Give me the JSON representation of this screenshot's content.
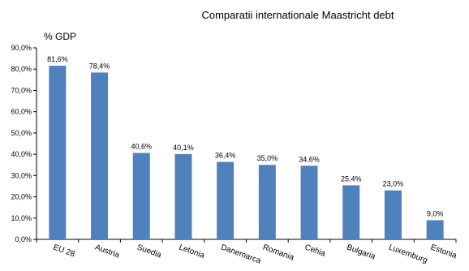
{
  "chart_data": {
    "type": "bar",
    "title": "Comparatii internationale Maastricht debt",
    "ylabel": "% GDP",
    "xlabel": "",
    "categories": [
      "EU 28",
      "Austria",
      "Suedia",
      "Letonia",
      "Danemarca",
      "Romania",
      "Cehia",
      "Bulgaria",
      "Luxemburg",
      "Estonia"
    ],
    "values": [
      81.6,
      78.4,
      40.6,
      40.1,
      36.4,
      35.0,
      34.6,
      25.4,
      23.0,
      9.0
    ],
    "data_labels": [
      "81,6%",
      "78,4%",
      "40,6%",
      "40,1%",
      "36,4%",
      "35,0%",
      "34,6%",
      "25,4%",
      "23,0%",
      "9,0%"
    ],
    "y_ticks": [
      0,
      10,
      20,
      30,
      40,
      50,
      60,
      70,
      80,
      90
    ],
    "y_tick_labels": [
      "0,0%",
      "10,0%",
      "20,0%",
      "30,0%",
      "40,0%",
      "50,0%",
      "60,0%",
      "70,0%",
      "80,0%",
      "90,0%"
    ],
    "ylim": [
      0,
      90
    ],
    "grid": false,
    "legend": "none",
    "bar_color": "#4f81bd"
  }
}
